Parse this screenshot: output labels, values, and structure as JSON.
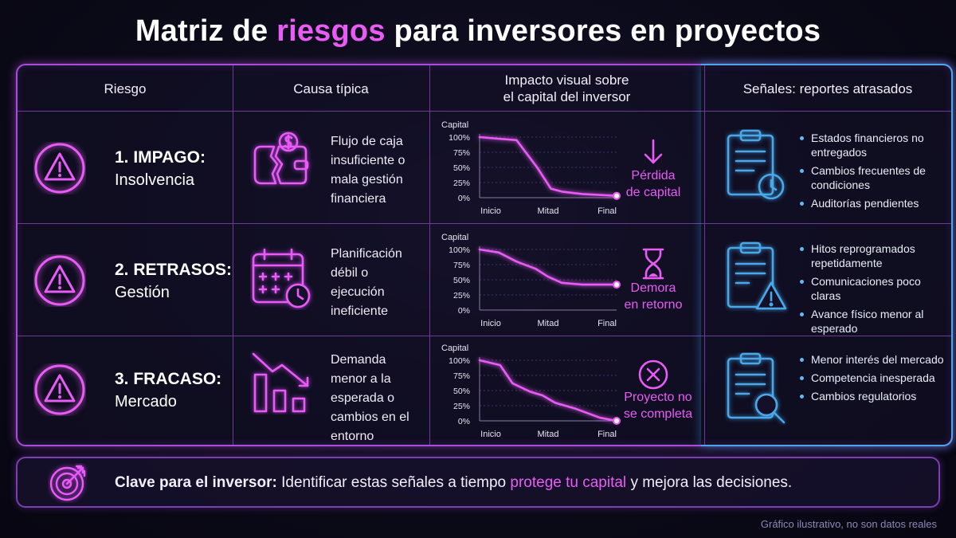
{
  "title": {
    "part1": "Matriz de",
    "accent": "riesgos",
    "part2": "para inversores en proyectos"
  },
  "headers": {
    "risk": "Riesgo",
    "cause": "Causa típica",
    "impact_line1": "Impacto visual sobre",
    "impact_line2": "el capital del inversor",
    "signals": "Señales: reportes atrasados"
  },
  "rows": [
    {
      "risk_title": "1. IMPAGO:",
      "risk_sub": "Insolvencia",
      "cause_icon": "broken-wallet-icon",
      "cause_text": "Flujo de caja insuficiente o mala gestión financiera",
      "impact_icon": "arrow-down-icon",
      "impact_line1": "Pérdida",
      "impact_line2": "de capital",
      "signal_icon": "clipboard-clock-icon",
      "signals": [
        "Estados financieros no entregados",
        "Cambios frecuentes de condiciones",
        "Auditorías pendientes"
      ]
    },
    {
      "risk_title": "2. RETRASOS:",
      "risk_sub": "Gestión",
      "cause_icon": "calendar-clock-icon",
      "cause_text": "Planificación débil o ejecución ineficiente",
      "impact_icon": "hourglass-icon",
      "impact_line1": "Demora",
      "impact_line2": "en retorno",
      "signal_icon": "clipboard-warning-icon",
      "signals": [
        "Hitos reprogramados repetidamente",
        "Comunicaciones poco claras",
        "Avance físico menor al esperado"
      ]
    },
    {
      "risk_title": "3. FRACASO:",
      "risk_sub": "Mercado",
      "cause_icon": "declining-bars-icon",
      "cause_text": "Demanda menor a la esperada o cambios en el entorno",
      "impact_icon": "x-circle-icon",
      "impact_line1": "Proyecto no",
      "impact_line2": "se completa",
      "signal_icon": "clipboard-search-icon",
      "signals": [
        "Menor interés del mercado",
        "Competencia inesperada",
        "Cambios regulatorios"
      ]
    }
  ],
  "chart_data": [
    {
      "type": "line",
      "ylabel": "Capital",
      "yticks": [
        "100%",
        "75%",
        "50%",
        "25%",
        "0%"
      ],
      "xticks": [
        "Inicio",
        "Mitad",
        "Final"
      ],
      "ylim": [
        0,
        100
      ],
      "x": [
        0,
        0.1,
        0.27,
        0.42,
        0.52,
        0.6,
        0.75,
        1
      ],
      "y": [
        100,
        98,
        95,
        50,
        15,
        10,
        6,
        3
      ]
    },
    {
      "type": "line",
      "ylabel": "Capital",
      "yticks": [
        "100%",
        "75%",
        "50%",
        "25%",
        "0%"
      ],
      "xticks": [
        "Inicio",
        "Mitad",
        "Final"
      ],
      "ylim": [
        0,
        100
      ],
      "x": [
        0,
        0.14,
        0.27,
        0.41,
        0.5,
        0.6,
        0.75,
        1
      ],
      "y": [
        100,
        95,
        80,
        68,
        55,
        45,
        42,
        42
      ]
    },
    {
      "type": "line",
      "ylabel": "Capital",
      "yticks": [
        "100%",
        "75%",
        "50%",
        "25%",
        "0%"
      ],
      "xticks": [
        "Inicio",
        "Mitad",
        "Final"
      ],
      "ylim": [
        0,
        100
      ],
      "x": [
        0,
        0.15,
        0.24,
        0.37,
        0.46,
        0.55,
        0.7,
        0.88,
        1
      ],
      "y": [
        100,
        92,
        62,
        48,
        42,
        30,
        20,
        5,
        0
      ]
    }
  ],
  "footer": {
    "icon": "target-icon",
    "bold": "Clave para el inversor:",
    "text1": "Identificar estas señales a tiempo",
    "highlight": "protege tu capital",
    "text2": "y mejora las decisiones."
  },
  "note": "Gráfico ilustrativo, no son datos reales",
  "colors": {
    "magenta": "#e85cf5",
    "purple": "#a94ed8",
    "blue": "#4aa8e8",
    "background": "#0b0a18"
  }
}
